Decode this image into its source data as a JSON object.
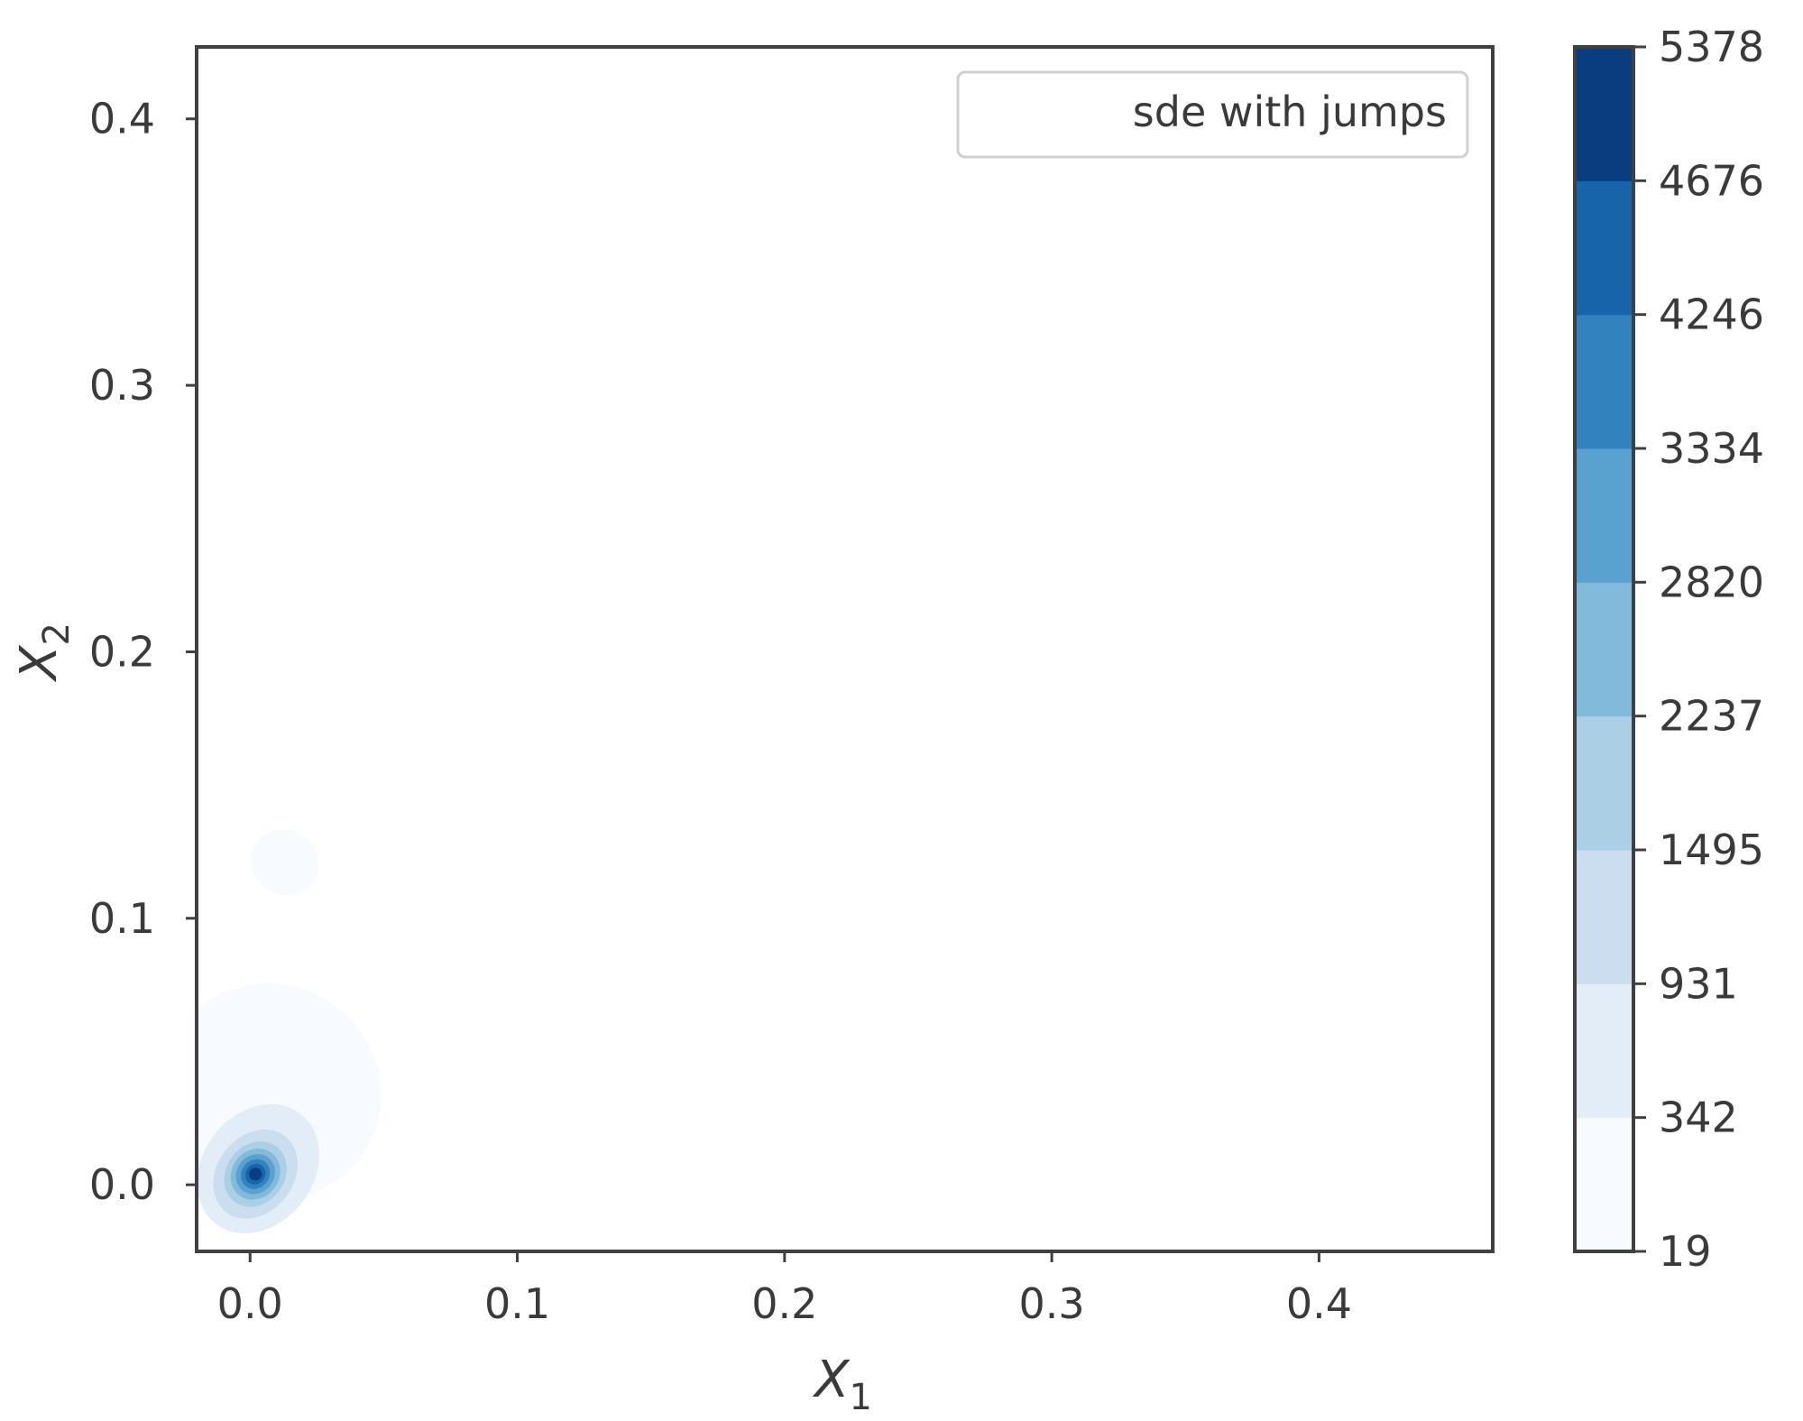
{
  "chart_data": {
    "type": "heatmap",
    "kind": "filled density contour (KDE)",
    "title": "",
    "xlabel_main": "X",
    "xlabel_sub": "1",
    "ylabel_main": "X",
    "ylabel_sub": "2",
    "xlim": [
      -0.02,
      0.465
    ],
    "ylim": [
      -0.025,
      0.427
    ],
    "xticks": [
      0.0,
      0.1,
      0.2,
      0.3,
      0.4
    ],
    "xtick_labels": [
      "0.0",
      "0.1",
      "0.2",
      "0.3",
      "0.4"
    ],
    "yticks": [
      0.0,
      0.1,
      0.2,
      0.3,
      0.4
    ],
    "ytick_labels": [
      "0.0",
      "0.1",
      "0.2",
      "0.3",
      "0.4"
    ],
    "grid": false,
    "legend": {
      "placement": "top-right",
      "entries": [
        "sde with jumps"
      ]
    },
    "colorbar": {
      "levels": [
        19,
        342,
        931,
        1495,
        2237,
        2820,
        3334,
        4246,
        4676,
        5378
      ],
      "tick_labels": [
        "19",
        "342",
        "931",
        "1495",
        "2237",
        "2820",
        "3334",
        "4246",
        "4676",
        "5378"
      ],
      "colors": [
        "#f7fbff",
        "#e2edf8",
        "#cadef0",
        "#abd0e6",
        "#82badb",
        "#59a1cf",
        "#3282bd",
        "#1764ab",
        "#083d7f"
      ]
    },
    "density_regions": [
      {
        "level_index": 0,
        "cx": 0.013,
        "cy": 0.121,
        "rx": 0.012,
        "ry": 0.005,
        "angle": 62
      },
      {
        "level_index": 0,
        "cx": 0.008,
        "cy": 0.035,
        "rx": 0.04,
        "ry": 0.016,
        "angle": 58
      },
      {
        "level_index": 1,
        "cx": 0.003,
        "cy": 0.006,
        "rx": 0.026,
        "ry": 0.008,
        "angle": 52
      },
      {
        "level_index": 2,
        "cx": 0.002,
        "cy": 0.004,
        "rx": 0.018,
        "ry": 0.0055,
        "angle": 52
      },
      {
        "level_index": 3,
        "cx": 0.002,
        "cy": 0.004,
        "rx": 0.013,
        "ry": 0.0042,
        "angle": 52
      },
      {
        "level_index": 4,
        "cx": 0.002,
        "cy": 0.004,
        "rx": 0.01,
        "ry": 0.0034,
        "angle": 52
      },
      {
        "level_index": 5,
        "cx": 0.002,
        "cy": 0.004,
        "rx": 0.0078,
        "ry": 0.0027,
        "angle": 52
      },
      {
        "level_index": 6,
        "cx": 0.002,
        "cy": 0.004,
        "rx": 0.0058,
        "ry": 0.002,
        "angle": 52
      },
      {
        "level_index": 7,
        "cx": 0.002,
        "cy": 0.004,
        "rx": 0.004,
        "ry": 0.0014,
        "angle": 52
      },
      {
        "level_index": 8,
        "cx": 0.002,
        "cy": 0.004,
        "rx": 0.0024,
        "ry": 0.0009,
        "angle": 52
      }
    ]
  }
}
